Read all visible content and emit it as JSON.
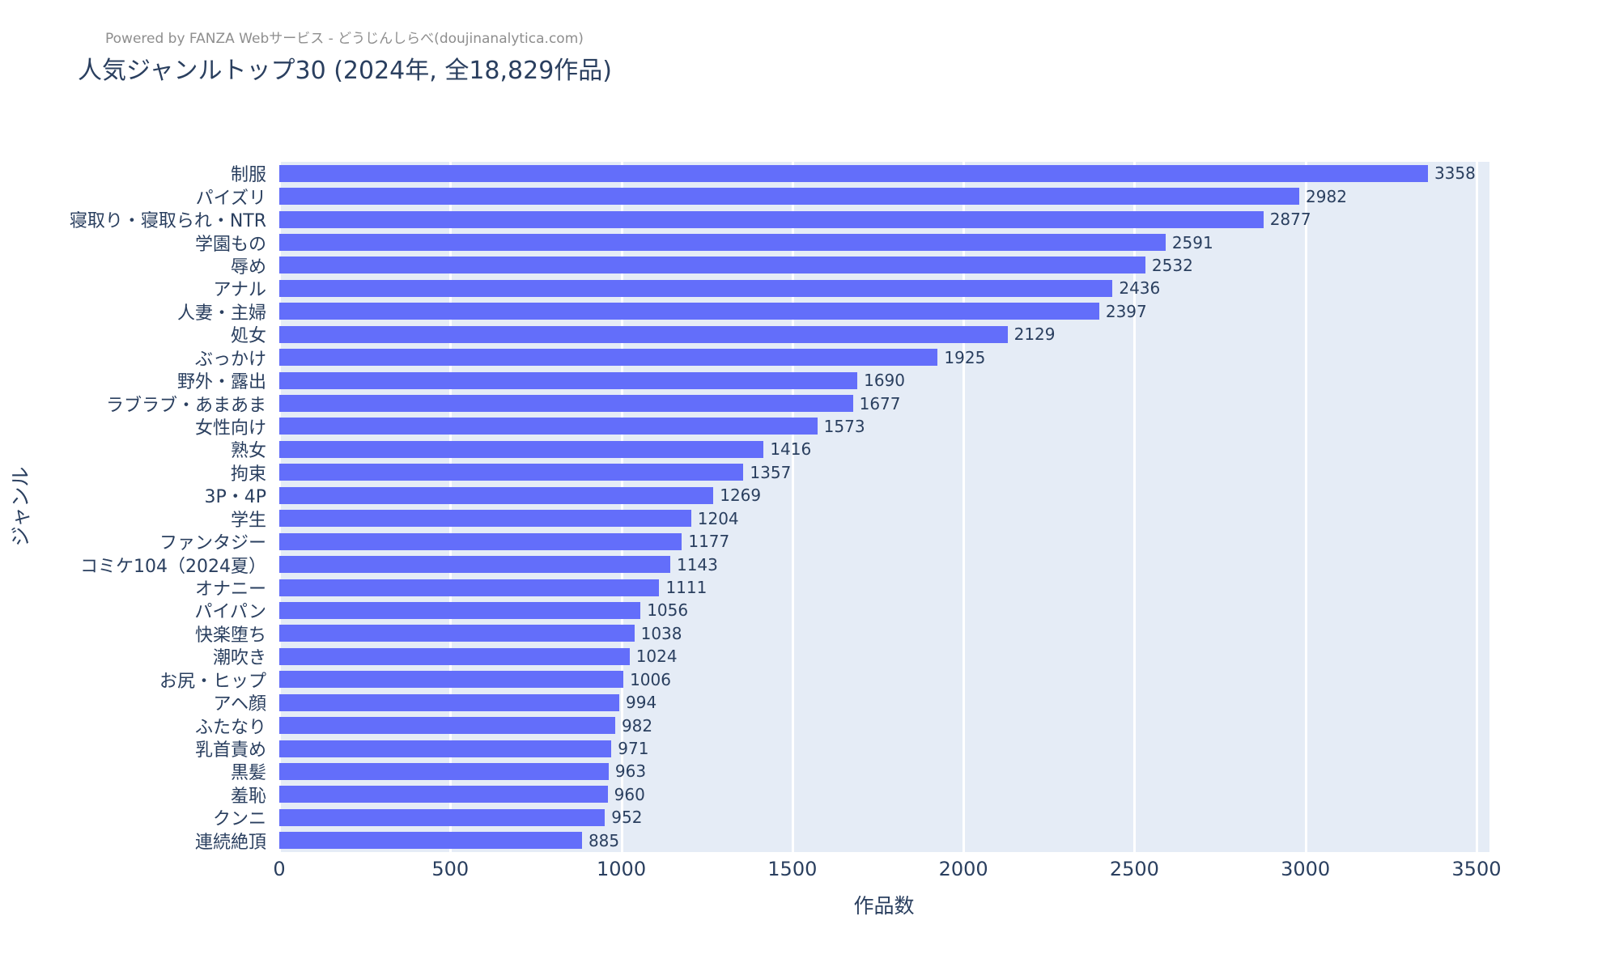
{
  "header": {
    "annotation": "Powered by FANZA Webサービス - どうじんしらべ(doujinanalytica.com)",
    "title": "人気ジャンルトップ30 (2024年, 全18,829作品)"
  },
  "chart_data": {
    "type": "bar",
    "orientation": "horizontal",
    "title": "人気ジャンルトップ30 (2024年, 全18,829作品)",
    "xlabel": "作品数",
    "ylabel": "ジャンル",
    "xlim": [
      0,
      3538
    ],
    "xticks": [
      0,
      500,
      1000,
      1500,
      2000,
      2500,
      3000,
      3500
    ],
    "grid": true,
    "legend": "none",
    "bar_color": "#636EFA",
    "plot_background": "#E5ECF6",
    "gridline_color": "#ffffff",
    "text_color": "#2a3f5f",
    "categories": [
      "制服",
      "パイズリ",
      "寝取り・寝取られ・NTR",
      "学園もの",
      "辱め",
      "アナル",
      "人妻・主婦",
      "処女",
      "ぶっかけ",
      "野外・露出",
      "ラブラブ・あまあま",
      "女性向け",
      "熟女",
      "拘束",
      "3P・4P",
      "学生",
      "ファンタジー",
      "コミケ104（2024夏）",
      "オナニー",
      "パイパン",
      "快楽堕ち",
      "潮吹き",
      "お尻・ヒップ",
      "アヘ顔",
      "ふたなり",
      "乳首責め",
      "黒髪",
      "羞恥",
      "クンニ",
      "連続絶頂"
    ],
    "values": [
      3358,
      2982,
      2877,
      2591,
      2532,
      2436,
      2397,
      2129,
      1925,
      1690,
      1677,
      1573,
      1416,
      1357,
      1269,
      1204,
      1177,
      1143,
      1111,
      1056,
      1038,
      1024,
      1006,
      994,
      982,
      971,
      963,
      960,
      952,
      885
    ]
  }
}
